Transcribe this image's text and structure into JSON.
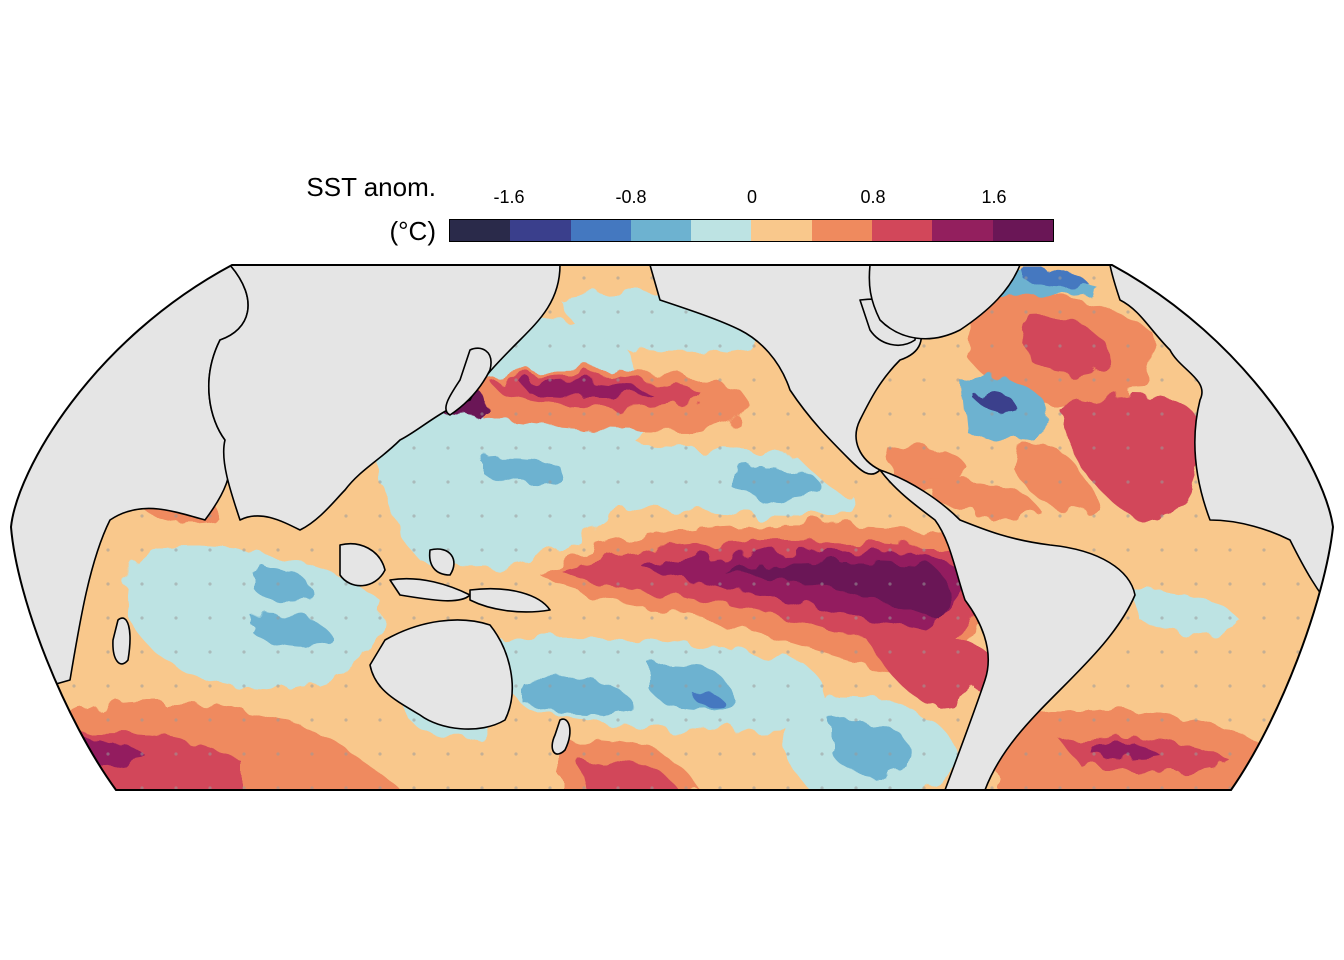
{
  "legend": {
    "title_line1": "SST anom.",
    "title_line2": "(°C)",
    "tick_labels": [
      "-1.6",
      "-0.8",
      "0",
      "0.8",
      "1.6"
    ],
    "tick_values": [
      -1.6,
      -0.8,
      0,
      0.8,
      1.6
    ],
    "range": [
      -2.0,
      2.0
    ],
    "bin_colors": [
      "#2a2a4a",
      "#3a3f8c",
      "#4478c0",
      "#6db2d0",
      "#bde3e3",
      "#f9c88c",
      "#ef8a5e",
      "#d2475a",
      "#931f5e",
      "#6a1656"
    ]
  },
  "map": {
    "projection": "Robinson-like, Pacific-centered",
    "land_color": "#e5e5e5",
    "coastline_color": "#000000",
    "stipple_color": "#9a9a9a"
  }
}
